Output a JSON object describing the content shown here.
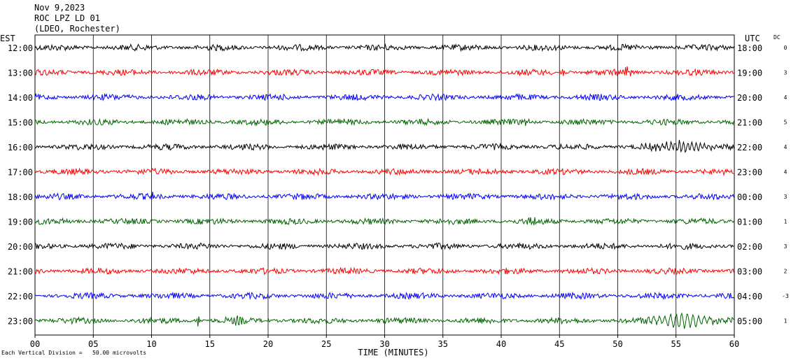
{
  "header": {
    "date": "Nov 9,2023",
    "station": "ROC LPZ LD 01",
    "network": "(LDEO, Rochester)"
  },
  "left_tz": "EST",
  "right_tz": "UTC",
  "dc_label": "DC",
  "footer_note": "Each Vertical Division =   50.00 microvolts",
  "colors": [
    "#000000",
    "#ff0000",
    "#0000ff",
    "#006400"
  ],
  "chart_data": {
    "type": "line",
    "title": "ROC LPZ LD 01",
    "xlabel": "TIME (MINUTES)",
    "xlim": [
      0,
      60
    ],
    "xticks": [
      "00",
      "05",
      "10",
      "15",
      "20",
      "25",
      "30",
      "35",
      "40",
      "45",
      "50",
      "55",
      "60"
    ],
    "rows": [
      {
        "left": "12:00",
        "right": "18:00",
        "dc": "0"
      },
      {
        "left": "13:00",
        "right": "19:00",
        "dc": "3"
      },
      {
        "left": "14:00",
        "right": "20:00",
        "dc": "4"
      },
      {
        "left": "15:00",
        "right": "21:00",
        "dc": "5"
      },
      {
        "left": "16:00",
        "right": "22:00",
        "dc": "4"
      },
      {
        "left": "17:00",
        "right": "23:00",
        "dc": "4"
      },
      {
        "left": "18:00",
        "right": "00:00",
        "dc": "3"
      },
      {
        "left": "19:00",
        "right": "01:00",
        "dc": "1"
      },
      {
        "left": "20:00",
        "right": "02:00",
        "dc": "3"
      },
      {
        "left": "21:00",
        "right": "03:00",
        "dc": "2"
      },
      {
        "left": "22:00",
        "right": "04:00",
        "dc": "-3"
      },
      {
        "left": "23:00",
        "right": "05:00",
        "dc": "1"
      }
    ],
    "grid": true
  }
}
